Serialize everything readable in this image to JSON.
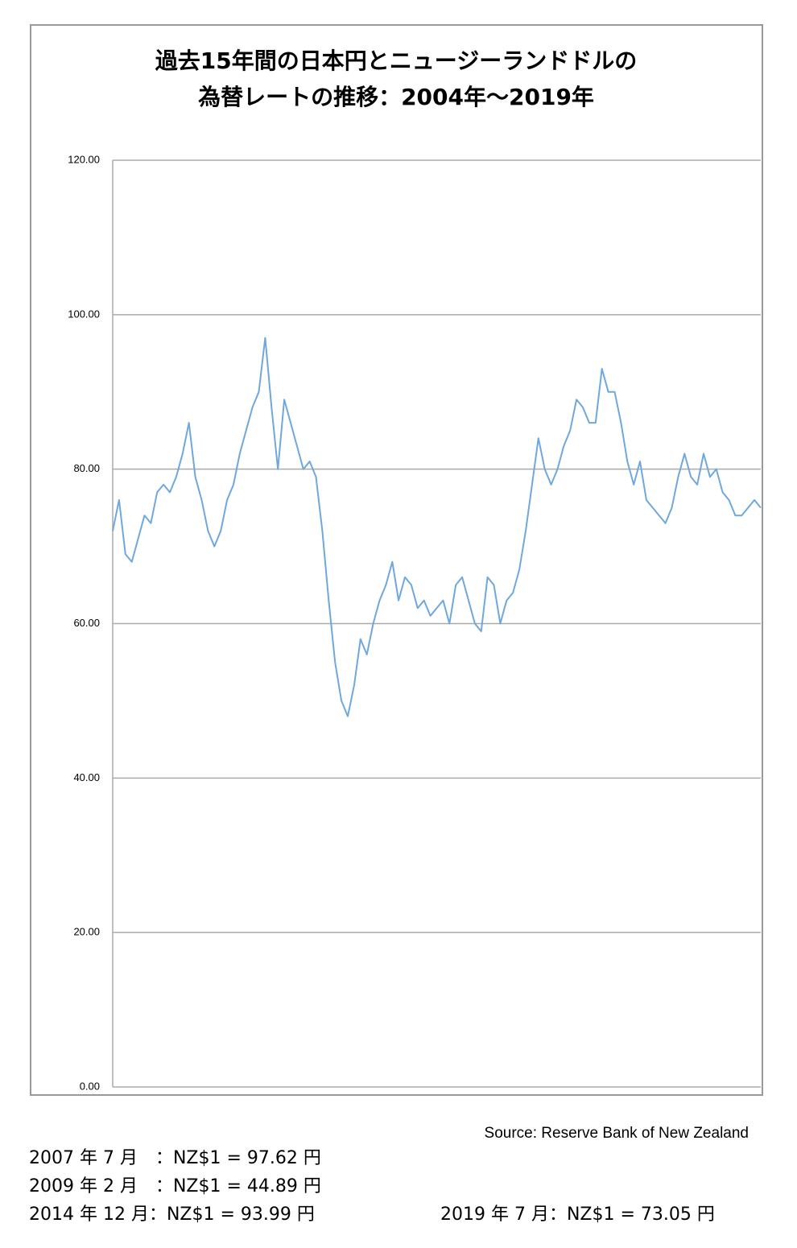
{
  "chart_data": {
    "type": "line",
    "title": [
      "過去15年間の日本円とニュージーランドドルの",
      "為替レートの推移：2004年〜2019年"
    ],
    "color": "#6fa8dc",
    "values": [
      72,
      76,
      69,
      68,
      71,
      74,
      73,
      77,
      78,
      77,
      79,
      82,
      86,
      79,
      76,
      72,
      70,
      72,
      76,
      78,
      82,
      85,
      88,
      90,
      97,
      88,
      80,
      89,
      86,
      83,
      80,
      81,
      79,
      72,
      63,
      55,
      50,
      48,
      52,
      58,
      56,
      60,
      63,
      65,
      68,
      63,
      66,
      65,
      62,
      63,
      61,
      62,
      63,
      60,
      65,
      66,
      63,
      60,
      59,
      66,
      65,
      60,
      63,
      64,
      67,
      72,
      78,
      84,
      80,
      78,
      80,
      83,
      85,
      89,
      88,
      86,
      86,
      93,
      90,
      90,
      86,
      81,
      78,
      81,
      76,
      75,
      74,
      73,
      75,
      79,
      82,
      79,
      78,
      82,
      79,
      80,
      77,
      76,
      74,
      74,
      75,
      76,
      75
    ],
    "ylim": [
      0,
      120
    ],
    "yticks": [
      {
        "value": 0,
        "label": "0.00"
      },
      {
        "value": 20,
        "label": "20.00"
      },
      {
        "value": 40,
        "label": "40.00"
      },
      {
        "value": 60,
        "label": "60.00"
      },
      {
        "value": 80,
        "label": "80.00"
      },
      {
        "value": 100,
        "label": "100.00"
      },
      {
        "value": 120,
        "label": "120.00"
      }
    ],
    "grid": true,
    "source": "Source: Reserve Bank of New Zealand",
    "notes": [
      "2007 年 7 月　：NZ$1 = 97.62 円",
      "2009 年 2 月　：NZ$1 = 44.89 円",
      "2014 年 12 月：NZ$1 = 93.99 円",
      "2019 年 7 月：NZ$1 = 73.05 円"
    ]
  }
}
